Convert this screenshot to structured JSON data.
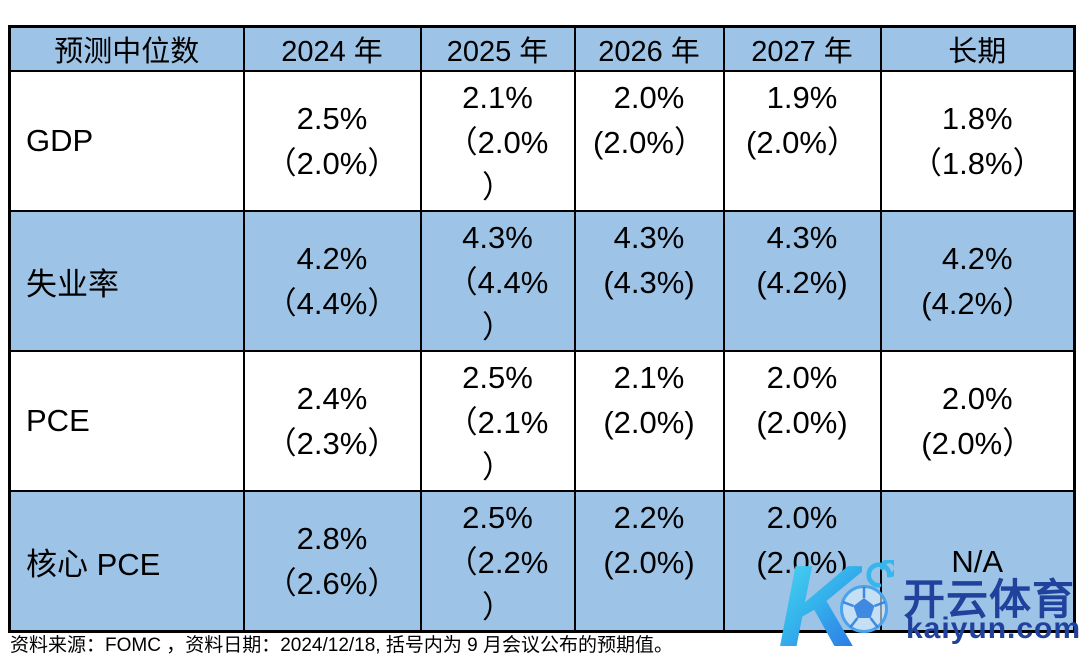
{
  "table": {
    "columns": [
      "预测中位数",
      "2024 年",
      "2025 年",
      "2026 年",
      "2027 年",
      "长期"
    ],
    "rows": [
      {
        "label": "GDP",
        "shaded": false,
        "cells": [
          [
            "2.5%",
            "（2.0%）"
          ],
          [
            "2.1%",
            "（2.0%",
            "）"
          ],
          [
            "2.0%",
            "(2.0%）"
          ],
          [
            "1.9%",
            "(2.0%）"
          ],
          [
            "1.8%",
            "（1.8%）"
          ]
        ]
      },
      {
        "label": "失业率",
        "shaded": true,
        "cells": [
          [
            "4.2%",
            "（4.4%）"
          ],
          [
            "4.3%",
            "（4.4%",
            "）"
          ],
          [
            "4.3%",
            "(4.3%)"
          ],
          [
            "4.3%",
            "(4.2%)"
          ],
          [
            "4.2%",
            "(4.2%）"
          ]
        ]
      },
      {
        "label": "PCE",
        "shaded": false,
        "cells": [
          [
            "2.4%",
            "（2.3%）"
          ],
          [
            "2.5%",
            "（2.1%",
            "）"
          ],
          [
            "2.1%",
            "(2.0%)"
          ],
          [
            "2.0%",
            "(2.0%)"
          ],
          [
            "2.0%",
            "(2.0%）"
          ]
        ]
      },
      {
        "label": "核心 PCE",
        "shaded": true,
        "cells": [
          [
            "2.8%",
            "（2.6%）"
          ],
          [
            "2.5%",
            "（2.2%",
            "）"
          ],
          [
            "2.2%",
            "(2.0%)"
          ],
          [
            "2.0%",
            "(2.0%)"
          ],
          [
            "N/A"
          ]
        ]
      }
    ]
  },
  "footer": {
    "text": "资料来源：FOMC ，资料日期：2024/12/18, 括号内为 9 月会议公布的预期值。"
  },
  "watermark": {
    "k": "K",
    "title": "开云体育",
    "domain": "kaiyun.com"
  },
  "colors": {
    "header_bg": "#9dc3e6",
    "shaded_row_bg": "#9dc3e6",
    "border": "#000000",
    "watermark_text": "#21429c",
    "watermark_gradient_start": "#4cd9f3",
    "watermark_gradient_end": "#2b6ae4"
  }
}
